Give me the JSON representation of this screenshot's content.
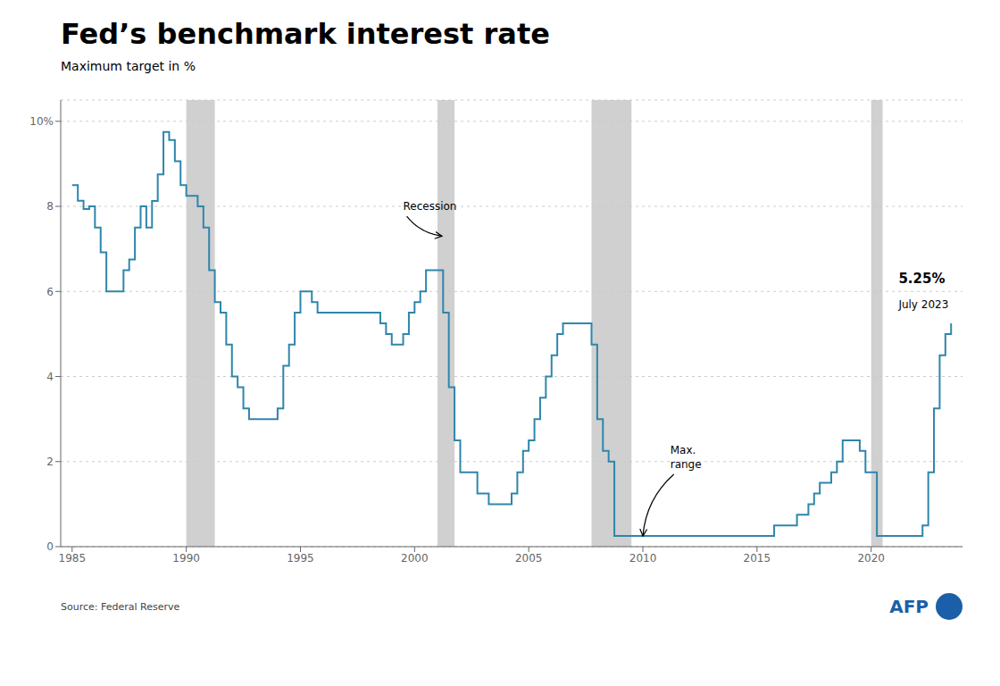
{
  "chart_data": {
    "type": "line",
    "line_style": "step",
    "title": "Fed’s benchmark interest rate",
    "subtitle": "Maximum target in %",
    "source": "Source: Federal Reserve",
    "credit": {
      "text": "AFP",
      "color": "#1a5fa8"
    },
    "color": "#2E86AB",
    "grid": true,
    "xlim": [
      1984.5,
      2024.0
    ],
    "ylim": [
      0,
      10.5
    ],
    "xticks": [
      1985,
      1990,
      1995,
      2000,
      2005,
      2010,
      2015,
      2020
    ],
    "yticks": [
      0,
      2,
      4,
      6,
      8,
      {
        "value": 10,
        "label": "10%"
      }
    ],
    "recession_bands": {
      "color": "#C8C8C8",
      "ranges": [
        [
          1990.0,
          1991.25
        ],
        [
          2001.0,
          2001.75
        ],
        [
          2007.75,
          2009.5
        ],
        [
          2020.0,
          2020.5
        ]
      ]
    },
    "annotations": [
      {
        "text": "Recession",
        "x": 1999.5,
        "y": 8.0,
        "arrow_to": [
          2001.2,
          7.3
        ]
      },
      {
        "text": "Max.\nrange",
        "x": 2011.2,
        "y": 2.1,
        "arrow_to": [
          2010.0,
          0.25
        ]
      }
    ],
    "callout": {
      "label": "5.25%",
      "note": "July 2023",
      "x": 2021.2,
      "label_y": 6.3,
      "note_y": 5.7
    },
    "x": [
      1985.0,
      1985.25,
      1985.5,
      1985.75,
      1986.0,
      1986.25,
      1986.5,
      1986.75,
      1987.0,
      1987.25,
      1987.5,
      1987.75,
      1988.0,
      1988.25,
      1988.5,
      1988.75,
      1989.0,
      1989.25,
      1989.5,
      1989.75,
      1990.0,
      1990.25,
      1990.5,
      1990.75,
      1991.0,
      1991.25,
      1991.5,
      1991.75,
      1992.0,
      1992.25,
      1992.5,
      1992.75,
      1993.0,
      1993.25,
      1993.5,
      1993.75,
      1994.0,
      1994.25,
      1994.5,
      1994.75,
      1995.0,
      1995.25,
      1995.5,
      1995.75,
      1996.0,
      1996.25,
      1996.5,
      1996.75,
      1997.0,
      1997.25,
      1997.5,
      1997.75,
      1998.0,
      1998.25,
      1998.5,
      1998.75,
      1999.0,
      1999.25,
      1999.5,
      1999.75,
      2000.0,
      2000.25,
      2000.5,
      2000.75,
      2001.0,
      2001.25,
      2001.5,
      2001.75,
      2002.0,
      2002.25,
      2002.5,
      2002.75,
      2003.0,
      2003.25,
      2003.5,
      2003.75,
      2004.0,
      2004.25,
      2004.5,
      2004.75,
      2005.0,
      2005.25,
      2005.5,
      2005.75,
      2006.0,
      2006.25,
      2006.5,
      2006.75,
      2007.0,
      2007.25,
      2007.5,
      2007.75,
      2008.0,
      2008.25,
      2008.5,
      2008.75,
      2009.0,
      2009.25,
      2009.5,
      2009.75,
      2010.0,
      2010.25,
      2010.5,
      2010.75,
      2011.0,
      2011.25,
      2011.5,
      2011.75,
      2012.0,
      2012.25,
      2012.5,
      2012.75,
      2013.0,
      2013.25,
      2013.5,
      2013.75,
      2014.0,
      2014.25,
      2014.5,
      2014.75,
      2015.0,
      2015.25,
      2015.5,
      2015.75,
      2016.0,
      2016.25,
      2016.5,
      2016.75,
      2017.0,
      2017.25,
      2017.5,
      2017.75,
      2018.0,
      2018.25,
      2018.5,
      2018.75,
      2019.0,
      2019.25,
      2019.5,
      2019.75,
      2020.0,
      2020.25,
      2020.5,
      2020.75,
      2021.0,
      2021.25,
      2021.5,
      2021.75,
      2022.0,
      2022.25,
      2022.5,
      2022.75,
      2023.0,
      2023.25,
      2023.5
    ],
    "values": [
      8.5,
      8.13,
      7.94,
      8.0,
      7.5,
      6.92,
      6.0,
      6.0,
      6.0,
      6.5,
      6.75,
      7.5,
      8.0,
      7.5,
      8.125,
      8.75,
      9.75,
      9.5625,
      9.0625,
      8.5,
      8.25,
      8.25,
      8.0,
      7.5,
      6.5,
      5.75,
      5.5,
      4.75,
      4.0,
      3.75,
      3.25,
      3.0,
      3.0,
      3.0,
      3.0,
      3.0,
      3.25,
      4.25,
      4.75,
      5.5,
      6.0,
      6.0,
      5.75,
      5.5,
      5.5,
      5.5,
      5.5,
      5.5,
      5.5,
      5.5,
      5.5,
      5.5,
      5.5,
      5.5,
      5.25,
      5.0,
      4.75,
      4.75,
      5.0,
      5.5,
      5.75,
      6.0,
      6.5,
      6.5,
      6.5,
      5.5,
      3.75,
      2.5,
      1.75,
      1.75,
      1.75,
      1.25,
      1.25,
      1.0,
      1.0,
      1.0,
      1.0,
      1.25,
      1.75,
      2.25,
      2.5,
      3.0,
      3.5,
      4.0,
      4.5,
      5.0,
      5.25,
      5.25,
      5.25,
      5.25,
      5.25,
      4.75,
      3.0,
      2.25,
      2.0,
      0.25,
      0.25,
      0.25,
      0.25,
      0.25,
      0.25,
      0.25,
      0.25,
      0.25,
      0.25,
      0.25,
      0.25,
      0.25,
      0.25,
      0.25,
      0.25,
      0.25,
      0.25,
      0.25,
      0.25,
      0.25,
      0.25,
      0.25,
      0.25,
      0.25,
      0.25,
      0.25,
      0.25,
      0.5,
      0.5,
      0.5,
      0.5,
      0.75,
      0.75,
      1.0,
      1.25,
      1.5,
      1.5,
      1.75,
      2.0,
      2.5,
      2.5,
      2.5,
      2.25,
      1.75,
      1.75,
      0.25,
      0.25,
      0.25,
      0.25,
      0.25,
      0.25,
      0.25,
      0.25,
      0.5,
      1.75,
      3.25,
      4.5,
      5.0,
      5.25
    ]
  }
}
